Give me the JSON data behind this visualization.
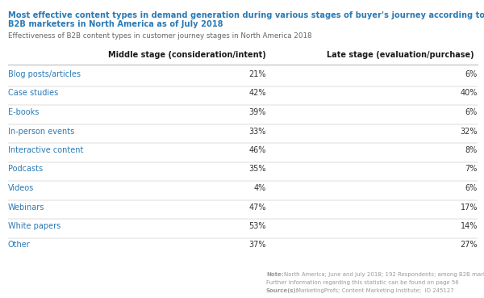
{
  "title_line1": "Most effective content types in demand generation during various stages of buyer's journey according to",
  "title_line2": "B2B marketers in North America as of July 2018",
  "subtitle": "Effectiveness of B2B content types in customer journey stages in North America 2018",
  "col1_header": "Middle stage (consideration/intent)",
  "col2_header": "Late stage (evaluation/purchase)",
  "categories": [
    "Blog posts/articles",
    "Case studies",
    "E-books",
    "In-person events",
    "Interactive content",
    "Podcasts",
    "Videos",
    "Webinars",
    "White papers",
    "Other"
  ],
  "middle_stage": [
    "21%",
    "42%",
    "39%",
    "33%",
    "46%",
    "35%",
    "4%",
    "47%",
    "53%",
    "37%"
  ],
  "late_stage": [
    "6%",
    "40%",
    "6%",
    "32%",
    "8%",
    "7%",
    "6%",
    "17%",
    "14%",
    "27%"
  ],
  "title_color": "#2a7ab5",
  "subtitle_color": "#666666",
  "header_color": "#1a1a1a",
  "category_color": "#2a7ab5",
  "value_color": "#333333",
  "note_color": "#999999",
  "bg_color": "#ffffff",
  "line_color": "#bbbbbb"
}
